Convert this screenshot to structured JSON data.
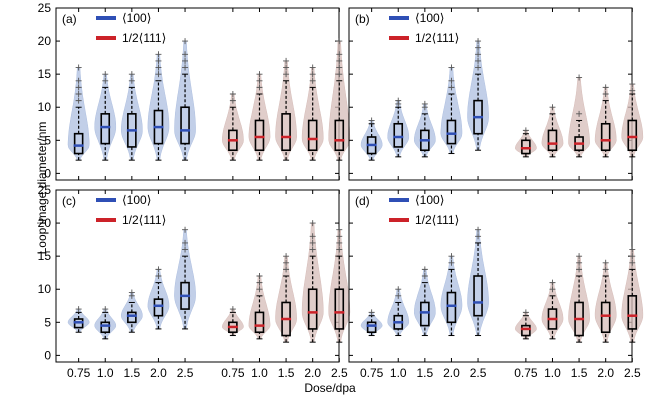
{
  "chart_data": {
    "type": "violin-box",
    "ylabel": "Loop image diameter/nm",
    "xlabel": "Dose/dpa",
    "ylim": [
      -1,
      25
    ],
    "yticks": [
      0,
      5,
      10,
      15,
      20,
      25
    ],
    "dose_labels": [
      "0.75",
      "1.0",
      "1.5",
      "2.0",
      "2.5"
    ],
    "legend": [
      {
        "name": "⟨100⟩",
        "color": "#2f4fb5"
      },
      {
        "name": "1/2⟨111⟩",
        "color": "#cc2229"
      }
    ],
    "colors": {
      "fill_100": "#aebfe0",
      "fill_111": "#d6bcb8",
      "box": "#000000",
      "median_100": "#2f4fb5",
      "median_111": "#cc2229",
      "outlier": "#555555"
    },
    "panels": [
      {
        "label": "(a)",
        "series": [
          {
            "name": "⟨100⟩",
            "groups": [
              {
                "dose": "0.75",
                "min": 2,
                "q1": 3,
                "median": 4.2,
                "q3": 6,
                "max": 10,
                "outliers": [
                  11,
                  12,
                  13,
                  14,
                  16
                ]
              },
              {
                "dose": "1.0",
                "min": 2,
                "q1": 4.5,
                "median": 7,
                "q3": 9,
                "max": 13,
                "outliers": [
                  14,
                  15
                ]
              },
              {
                "dose": "1.5",
                "min": 2,
                "q1": 4,
                "median": 6.5,
                "q3": 9,
                "max": 13,
                "outliers": [
                  14,
                  15
                ]
              },
              {
                "dose": "2.0",
                "min": 2,
                "q1": 4.5,
                "median": 7,
                "q3": 9.5,
                "max": 14,
                "outliers": [
                  15,
                  16,
                  17,
                  18
                ]
              },
              {
                "dose": "2.5",
                "min": 2,
                "q1": 4.5,
                "median": 6.5,
                "q3": 10,
                "max": 15,
                "outliers": [
                  16,
                  17,
                  18,
                  20
                ]
              }
            ]
          },
          {
            "name": "1/2⟨111⟩",
            "groups": [
              {
                "dose": "0.75",
                "min": 2,
                "q1": 3.5,
                "median": 5,
                "q3": 6.5,
                "max": 10,
                "outliers": [
                  11,
                  12
                ]
              },
              {
                "dose": "1.0",
                "min": 2,
                "q1": 3.5,
                "median": 5.5,
                "q3": 8,
                "max": 12,
                "outliers": [
                  13,
                  14,
                  15
                ]
              },
              {
                "dose": "1.5",
                "min": 2,
                "q1": 3.5,
                "median": 5.5,
                "q3": 9,
                "max": 14,
                "outliers": [
                  15,
                  16,
                  17
                ]
              },
              {
                "dose": "2.0",
                "min": 2,
                "q1": 3.5,
                "median": 5.2,
                "q3": 8,
                "max": 13,
                "outliers": [
                  14,
                  15,
                  16
                ]
              },
              {
                "dose": "2.5",
                "min": 2,
                "q1": 3.5,
                "median": 5,
                "q3": 8,
                "max": 14,
                "outliers": [
                  15,
                  16,
                  17,
                  18,
                  20
                ]
              }
            ]
          }
        ]
      },
      {
        "label": "(b)",
        "series": [
          {
            "name": "⟨100⟩",
            "groups": [
              {
                "dose": "0.75",
                "min": 2,
                "q1": 3,
                "median": 4.3,
                "q3": 5.5,
                "max": 7.5,
                "outliers": [
                  8
                ]
              },
              {
                "dose": "1.0",
                "min": 2.5,
                "q1": 4,
                "median": 5.5,
                "q3": 7.5,
                "max": 10,
                "outliers": [
                  10.5,
                  11
                ]
              },
              {
                "dose": "1.5",
                "min": 2.5,
                "q1": 3.5,
                "median": 5,
                "q3": 6.5,
                "max": 9,
                "outliers": [
                  10,
                  10.5
                ]
              },
              {
                "dose": "2.0",
                "min": 3,
                "q1": 4.5,
                "median": 6,
                "q3": 8,
                "max": 12,
                "outliers": [
                  13,
                  14,
                  16
                ]
              },
              {
                "dose": "2.5",
                "min": 3.5,
                "q1": 6,
                "median": 8.5,
                "q3": 11,
                "max": 15,
                "outliers": [
                  16,
                  17,
                  18,
                  19,
                  20
                ]
              }
            ]
          },
          {
            "name": "1/2⟨111⟩",
            "groups": [
              {
                "dose": "0.75",
                "min": 2.5,
                "q1": 3,
                "median": 3.8,
                "q3": 5,
                "max": 6,
                "outliers": [
                  6.5
                ]
              },
              {
                "dose": "1.0",
                "min": 2.5,
                "q1": 3.5,
                "median": 4.5,
                "q3": 6.5,
                "max": 9,
                "outliers": [
                  10
                ]
              },
              {
                "dose": "1.5",
                "min": 2.5,
                "q1": 3.5,
                "median": 4.5,
                "q3": 5.5,
                "max": 8,
                "outliers": [
                  9,
                  14.5
                ]
              },
              {
                "dose": "2.0",
                "min": 2.5,
                "q1": 3.5,
                "median": 5,
                "q3": 7.5,
                "max": 11,
                "outliers": [
                  12,
                  13
                ]
              },
              {
                "dose": "2.5",
                "min": 2.5,
                "q1": 3.5,
                "median": 5.5,
                "q3": 8,
                "max": 12,
                "outliers": [
                  12.5,
                  13.5
                ]
              }
            ]
          }
        ]
      },
      {
        "label": "(c)",
        "series": [
          {
            "name": "⟨100⟩",
            "groups": [
              {
                "dose": "0.75",
                "min": 3.5,
                "q1": 4.2,
                "median": 5,
                "q3": 5.5,
                "max": 6.5,
                "outliers": [
                  7
                ]
              },
              {
                "dose": "1.0",
                "min": 2.5,
                "q1": 3.5,
                "median": 4.5,
                "q3": 5,
                "max": 6.5,
                "outliers": [
                  7
                ]
              },
              {
                "dose": "1.5",
                "min": 3.5,
                "q1": 5,
                "median": 6,
                "q3": 6.5,
                "max": 8,
                "outliers": [
                  9,
                  9.5
                ]
              },
              {
                "dose": "2.0",
                "min": 4,
                "q1": 6,
                "median": 7.5,
                "q3": 8.5,
                "max": 11,
                "outliers": [
                  12,
                  13
                ]
              },
              {
                "dose": "2.5",
                "min": 4,
                "q1": 7,
                "median": 9,
                "q3": 11,
                "max": 15,
                "outliers": [
                  16,
                  17,
                  19
                ]
              }
            ]
          },
          {
            "name": "1/2⟨111⟩",
            "groups": [
              {
                "dose": "0.75",
                "min": 3,
                "q1": 3.5,
                "median": 4.3,
                "q3": 5,
                "max": 6.5,
                "outliers": [
                  7
                ]
              },
              {
                "dose": "1.0",
                "min": 2.5,
                "q1": 3.5,
                "median": 4.5,
                "q3": 6.5,
                "max": 9,
                "outliers": [
                  10,
                  11,
                  12
                ]
              },
              {
                "dose": "1.5",
                "min": 2,
                "q1": 3,
                "median": 5.5,
                "q3": 8,
                "max": 12,
                "outliers": [
                  13,
                  14,
                  15
                ]
              },
              {
                "dose": "2.0",
                "min": 2,
                "q1": 4,
                "median": 6.5,
                "q3": 10,
                "max": 15,
                "outliers": [
                  16,
                  17,
                  18,
                  20
                ]
              },
              {
                "dose": "2.5",
                "min": 2,
                "q1": 4,
                "median": 6.5,
                "q3": 10,
                "max": 15,
                "outliers": [
                  16,
                  17,
                  18,
                  19
                ]
              }
            ]
          }
        ]
      },
      {
        "label": "(d)",
        "series": [
          {
            "name": "⟨100⟩",
            "groups": [
              {
                "dose": "0.75",
                "min": 3,
                "q1": 3.5,
                "median": 4.5,
                "q3": 5,
                "max": 6,
                "outliers": [
                  6.5
                ]
              },
              {
                "dose": "1.0",
                "min": 3,
                "q1": 4,
                "median": 5,
                "q3": 6,
                "max": 8,
                "outliers": [
                  9,
                  10
                ]
              },
              {
                "dose": "1.5",
                "min": 3,
                "q1": 4.5,
                "median": 6.5,
                "q3": 8,
                "max": 11,
                "outliers": [
                  12,
                  13
                ]
              },
              {
                "dose": "2.0",
                "min": 3,
                "q1": 5,
                "median": 7.5,
                "q3": 9.5,
                "max": 13,
                "outliers": [
                  14,
                  15
                ]
              },
              {
                "dose": "2.5",
                "min": 3,
                "q1": 6,
                "median": 8,
                "q3": 12,
                "max": 17,
                "outliers": [
                  18,
                  19
                ]
              }
            ]
          },
          {
            "name": "1/2⟨111⟩",
            "groups": [
              {
                "dose": "0.75",
                "min": 2.5,
                "q1": 3,
                "median": 4,
                "q3": 4.5,
                "max": 6,
                "outliers": [
                  6.5
                ]
              },
              {
                "dose": "1.0",
                "min": 2.5,
                "q1": 4,
                "median": 5.5,
                "q3": 7,
                "max": 9,
                "outliers": [
                  10,
                  11
                ]
              },
              {
                "dose": "1.5",
                "min": 2,
                "q1": 3,
                "median": 5.5,
                "q3": 8,
                "max": 12,
                "outliers": [
                  13,
                  14,
                  15
                ]
              },
              {
                "dose": "2.0",
                "min": 2,
                "q1": 3.5,
                "median": 6,
                "q3": 8,
                "max": 12,
                "outliers": [
                  13,
                  14
                ]
              },
              {
                "dose": "2.5",
                "min": 2,
                "q1": 4,
                "median": 6,
                "q3": 9,
                "max": 13,
                "outliers": [
                  14,
                  15,
                  16
                ]
              }
            ]
          }
        ]
      }
    ]
  }
}
